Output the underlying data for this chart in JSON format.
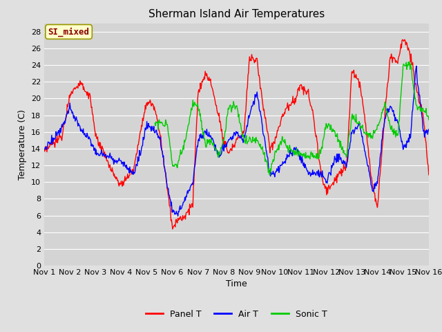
{
  "title": "Sherman Island Air Temperatures",
  "xlabel": "Time",
  "ylabel": "Temperature (C)",
  "annotation": "SI_mixed",
  "ylim": [
    0,
    29
  ],
  "yticks": [
    0,
    2,
    4,
    6,
    8,
    10,
    12,
    14,
    16,
    18,
    20,
    22,
    24,
    26,
    28
  ],
  "xtick_labels": [
    "Nov 1",
    "Nov 2",
    "Nov 3",
    "Nov 4",
    "Nov 5",
    "Nov 6",
    "Nov 7",
    "Nov 8",
    "Nov 9",
    "Nov 10",
    "Nov 11",
    "Nov 12",
    "Nov 13",
    "Nov 14",
    "Nov 15",
    "Nov 16"
  ],
  "panel_color": "#ff0000",
  "air_color": "#0000ff",
  "sonic_color": "#00cc00",
  "bg_color": "#e0e0e0",
  "plot_bg": "#d4d4d4",
  "legend_labels": [
    "Panel T",
    "Air T",
    "Sonic T"
  ],
  "title_fontsize": 11,
  "label_fontsize": 9,
  "tick_fontsize": 8,
  "annot_fontsize": 9,
  "legend_fontsize": 9,
  "panel_ctrl_t": [
    0,
    0.3,
    0.7,
    1.0,
    1.4,
    1.8,
    2.0,
    2.3,
    2.6,
    3.0,
    3.2,
    3.5,
    3.8,
    4.0,
    4.3,
    4.5,
    4.8,
    5.0,
    5.2,
    5.5,
    5.8,
    6.0,
    6.3,
    6.5,
    6.8,
    7.0,
    7.2,
    7.5,
    7.8,
    8.0,
    8.3,
    8.5,
    8.8,
    9.0,
    9.3,
    9.5,
    9.8,
    10.0,
    10.3,
    10.5,
    10.8,
    11.0,
    11.3,
    11.5,
    11.8,
    12.0,
    12.3,
    12.5,
    12.8,
    13.0,
    13.3,
    13.5,
    13.8,
    14.0,
    14.3,
    14.5,
    14.8,
    15.0
  ],
  "panel_ctrl_v": [
    13.5,
    14.5,
    15.5,
    20.5,
    22.0,
    20.0,
    15.5,
    13.5,
    11.5,
    9.5,
    10.5,
    11.5,
    17.0,
    19.5,
    19.0,
    16.0,
    9.5,
    4.5,
    5.5,
    6.0,
    7.5,
    20.5,
    23.0,
    22.0,
    18.0,
    15.0,
    13.5,
    15.0,
    16.0,
    25.0,
    24.5,
    20.0,
    14.0,
    15.0,
    18.0,
    19.0,
    20.0,
    21.5,
    20.5,
    18.0,
    11.0,
    9.0,
    10.0,
    11.0,
    12.0,
    23.5,
    22.0,
    18.0,
    9.5,
    7.0,
    18.5,
    25.0,
    24.5,
    27.5,
    25.0,
    21.5,
    17.5,
    11.0
  ],
  "air_ctrl_t": [
    0,
    0.3,
    0.7,
    1.0,
    1.4,
    1.8,
    2.0,
    2.5,
    3.0,
    3.5,
    3.8,
    4.0,
    4.3,
    4.5,
    4.8,
    5.0,
    5.2,
    5.5,
    5.8,
    6.0,
    6.3,
    6.5,
    6.8,
    7.0,
    7.2,
    7.5,
    7.8,
    8.0,
    8.3,
    8.5,
    8.8,
    9.0,
    9.3,
    9.5,
    9.8,
    10.0,
    10.3,
    10.5,
    10.8,
    11.0,
    11.3,
    11.5,
    11.8,
    12.0,
    12.3,
    12.5,
    12.8,
    13.0,
    13.3,
    13.5,
    13.8,
    14.0,
    14.3,
    14.5,
    14.8,
    15.0
  ],
  "air_ctrl_v": [
    14.0,
    15.0,
    16.5,
    19.0,
    16.5,
    15.0,
    13.5,
    13.0,
    12.5,
    11.0,
    14.0,
    17.0,
    16.0,
    15.5,
    9.5,
    6.5,
    6.0,
    8.0,
    10.0,
    15.0,
    16.0,
    15.5,
    13.0,
    14.0,
    15.0,
    16.0,
    15.0,
    18.0,
    20.5,
    17.0,
    11.0,
    11.0,
    12.0,
    13.0,
    14.0,
    13.0,
    11.0,
    11.0,
    11.0,
    10.0,
    12.5,
    13.0,
    12.0,
    16.0,
    17.0,
    14.0,
    9.0,
    10.0,
    18.0,
    19.0,
    17.0,
    14.0,
    15.5,
    24.0,
    16.0,
    16.0
  ],
  "sonic_ctrl_t": [
    4.3,
    4.45,
    4.6,
    4.8,
    5.0,
    5.2,
    5.5,
    5.8,
    6.0,
    6.3,
    6.5,
    6.8,
    7.0,
    7.2,
    7.5,
    7.8,
    8.0,
    8.3,
    8.5,
    8.8,
    9.0,
    9.3,
    9.5,
    9.8,
    10.0,
    10.3,
    10.5,
    10.8,
    11.0,
    11.3,
    11.5,
    11.8,
    12.0,
    12.3,
    12.5,
    12.8,
    13.0,
    13.3,
    13.5,
    13.8,
    14.0,
    14.3,
    14.5,
    14.8,
    15.0
  ],
  "sonic_ctrl_v": [
    17.0,
    17.0,
    17.0,
    17.0,
    12.0,
    12.0,
    15.0,
    19.5,
    19.0,
    14.5,
    15.0,
    13.0,
    15.0,
    19.0,
    19.0,
    15.0,
    15.0,
    15.0,
    14.0,
    11.0,
    13.5,
    15.0,
    14.0,
    13.5,
    13.5,
    13.0,
    13.0,
    13.5,
    17.0,
    16.0,
    15.0,
    13.0,
    18.0,
    17.0,
    16.0,
    15.5,
    16.5,
    19.5,
    16.5,
    15.5,
    24.0,
    24.0,
    19.0,
    18.5,
    18.0
  ]
}
